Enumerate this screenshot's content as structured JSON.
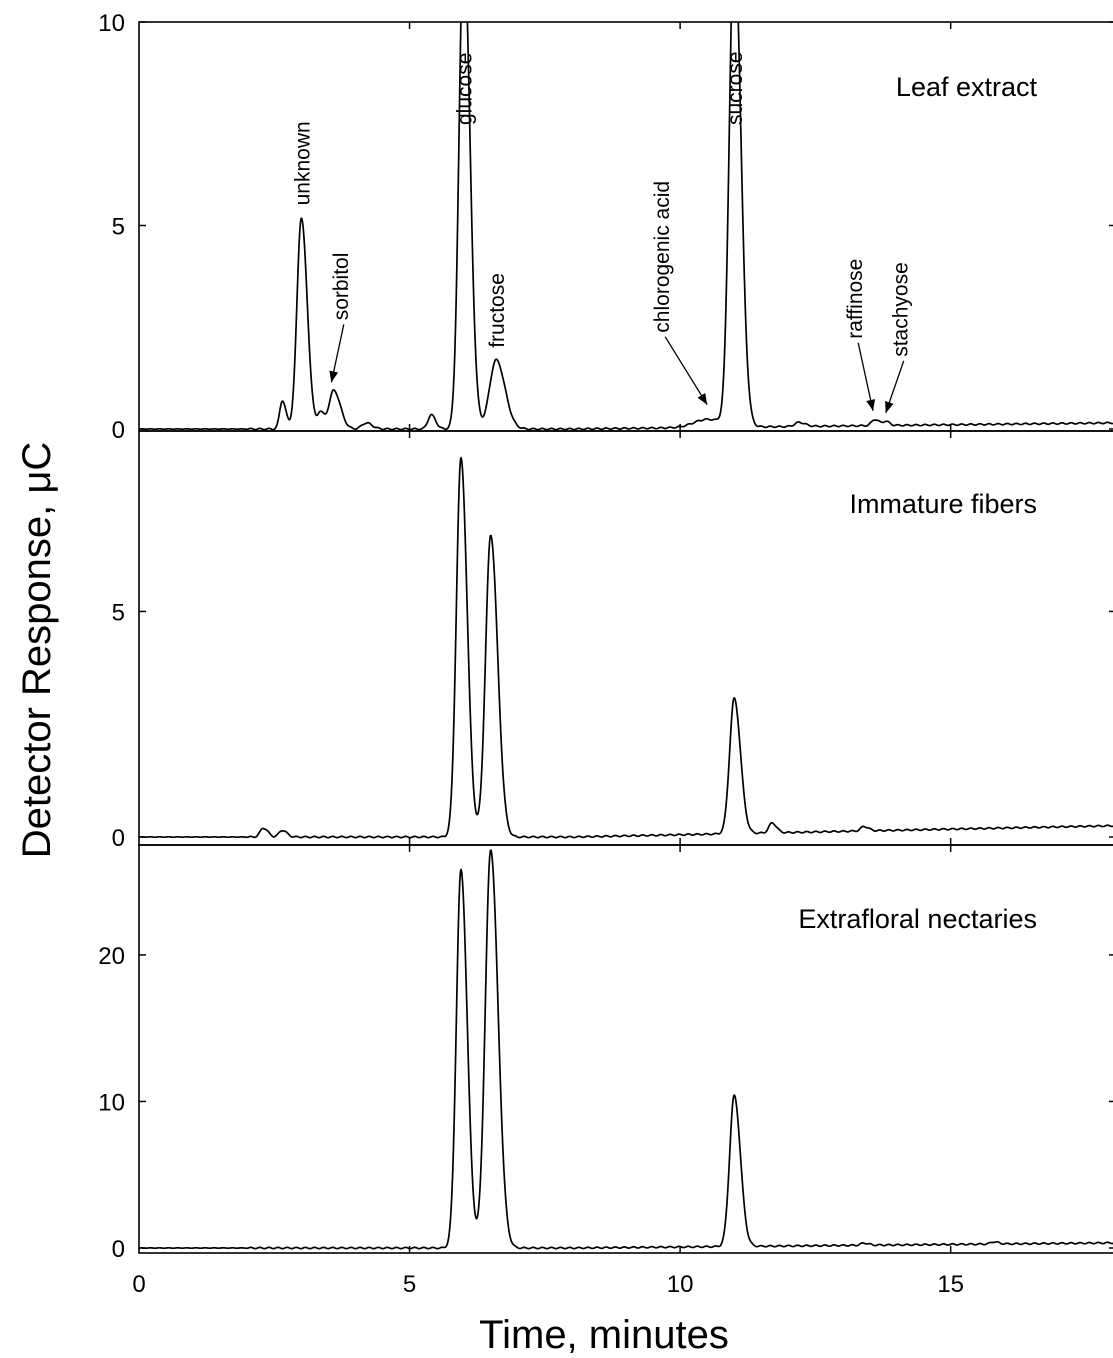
{
  "chart_data": {
    "type": "line",
    "xlabel": "Time, minutes",
    "ylabel": "Detector Response, μC",
    "xlim": [
      0,
      18
    ],
    "x_ticks": [
      0,
      5,
      10,
      15
    ],
    "x_tick_labels": [
      "0",
      "5",
      "10",
      "15"
    ],
    "panels": [
      {
        "name": "Leaf extract",
        "ylim": [
          0,
          10
        ],
        "y_ticks": [
          0,
          5,
          10
        ],
        "y_tick_labels": [
          "0",
          "5",
          "10"
        ],
        "baseline": 0.0,
        "baseline_drift": 0.15,
        "peaks": [
          {
            "t": 2.65,
            "h": 0.7,
            "w": 0.05
          },
          {
            "t": 3.0,
            "h": 5.2,
            "w": 0.08
          },
          {
            "t": 3.35,
            "h": 0.4,
            "w": 0.05
          },
          {
            "t": 3.6,
            "h": 0.95,
            "w": 0.09
          },
          {
            "t": 4.2,
            "h": 0.15,
            "w": 0.08
          },
          {
            "t": 5.4,
            "h": 0.35,
            "w": 0.06
          },
          {
            "t": 6.0,
            "h": 12.0,
            "w": 0.085
          },
          {
            "t": 6.6,
            "h": 1.7,
            "w": 0.12
          },
          {
            "t": 10.5,
            "h": 0.2,
            "w": 0.25
          },
          {
            "t": 11.0,
            "h": 12.0,
            "w": 0.09
          },
          {
            "t": 12.2,
            "h": 0.1,
            "w": 0.08
          },
          {
            "t": 13.6,
            "h": 0.15,
            "w": 0.06
          },
          {
            "t": 13.8,
            "h": 0.1,
            "w": 0.05
          }
        ],
        "annotations": [
          {
            "text": "unknown",
            "x": 3.0,
            "y": 5.2,
            "arrow": false
          },
          {
            "text": "sorbitol",
            "x": 3.6,
            "y": 0.95,
            "arrow": true
          },
          {
            "text": "glucose",
            "x": 6.0,
            "y": 10.0,
            "arrow": false
          },
          {
            "text": "fructose",
            "x": 6.6,
            "y": 1.7,
            "arrow": false
          },
          {
            "text": "chlorogenic acid",
            "x": 10.5,
            "y": 0.45,
            "arrow": true
          },
          {
            "text": "sucrose",
            "x": 11.0,
            "y": 10.0,
            "arrow": false
          },
          {
            "text": "raffinose",
            "x": 13.55,
            "y": 0.3,
            "arrow": true
          },
          {
            "text": "stachyose",
            "x": 13.8,
            "y": 0.25,
            "arrow": true
          }
        ]
      },
      {
        "name": "Immature fibers",
        "ylim": [
          -0.05,
          9.0
        ],
        "y_ticks": [
          0,
          5
        ],
        "y_tick_labels": [
          "0",
          "5"
        ],
        "baseline": 0.0,
        "baseline_drift": 0.25,
        "peaks": [
          {
            "t": 2.3,
            "h": 0.2,
            "w": 0.06
          },
          {
            "t": 2.65,
            "h": 0.15,
            "w": 0.06
          },
          {
            "t": 5.95,
            "h": 8.4,
            "w": 0.085
          },
          {
            "t": 6.5,
            "h": 6.7,
            "w": 0.095
          },
          {
            "t": 11.0,
            "h": 3.0,
            "w": 0.085
          },
          {
            "t": 11.7,
            "h": 0.22,
            "w": 0.06
          },
          {
            "t": 13.4,
            "h": 0.1,
            "w": 0.06
          }
        ]
      },
      {
        "name": "Extrafloral nectaries",
        "ylim": [
          -0.3,
          27.5
        ],
        "y_ticks": [
          0,
          10,
          20
        ],
        "y_tick_labels": [
          "0",
          "10",
          "20"
        ],
        "baseline": 0.0,
        "baseline_drift": 0.35,
        "peaks": [
          {
            "t": 5.95,
            "h": 25.8,
            "w": 0.085
          },
          {
            "t": 6.5,
            "h": 27.2,
            "w": 0.1
          },
          {
            "t": 11.0,
            "h": 10.3,
            "w": 0.085
          },
          {
            "t": 13.4,
            "h": 0.15,
            "w": 0.06
          },
          {
            "t": 15.8,
            "h": 0.15,
            "w": 0.06
          }
        ]
      }
    ]
  }
}
